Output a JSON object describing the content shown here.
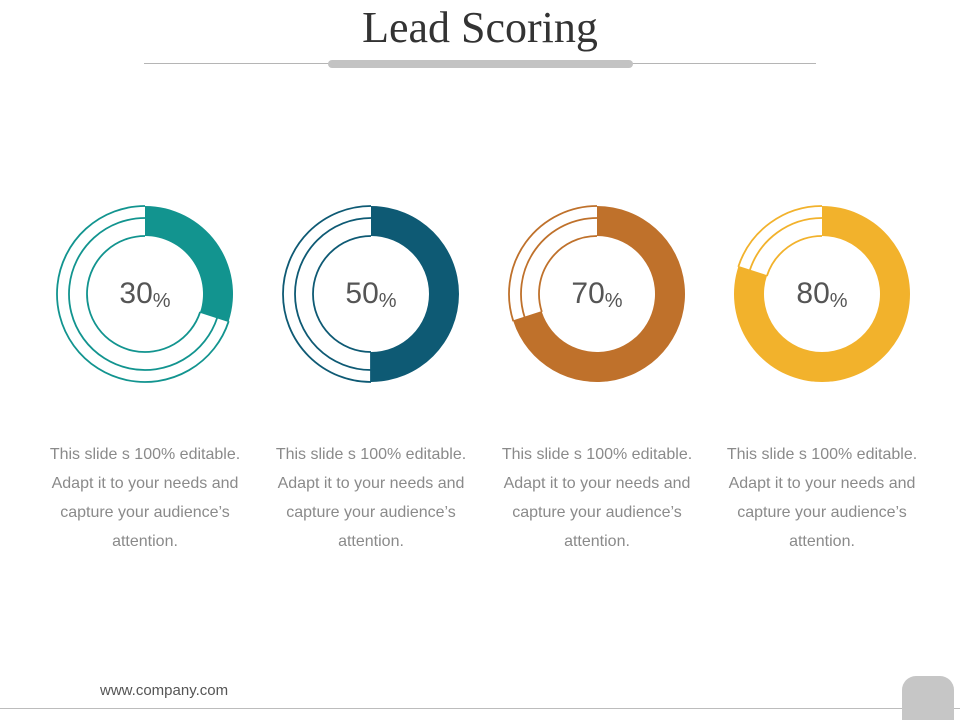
{
  "slide": {
    "title": "Lead Scoring",
    "footer_url": "www.company.com"
  },
  "chart_data": {
    "type": "donut",
    "unit": "%",
    "max": 100,
    "items": [
      {
        "label": "30",
        "value": 30,
        "color": "#12948F",
        "text": [
          "This slide s 100% editable.",
          "Adapt it to your needs and",
          "capture your audience’s",
          "attention."
        ]
      },
      {
        "label": "50",
        "value": 50,
        "color": "#0E5A74",
        "text": [
          "This slide s 100% editable.",
          "Adapt it to your needs and",
          "capture your audience’s",
          "attention."
        ]
      },
      {
        "label": "70",
        "value": 70,
        "color": "#BF712B",
        "text": [
          "This slide s 100% editable.",
          "Adapt it to your needs and",
          "capture your audience’s",
          "attention."
        ]
      },
      {
        "label": "80",
        "value": 80,
        "color": "#F2B22C",
        "text": [
          "This slide s 100% editable.",
          "Adapt it to your needs and",
          "capture your audience’s",
          "attention."
        ]
      }
    ]
  }
}
